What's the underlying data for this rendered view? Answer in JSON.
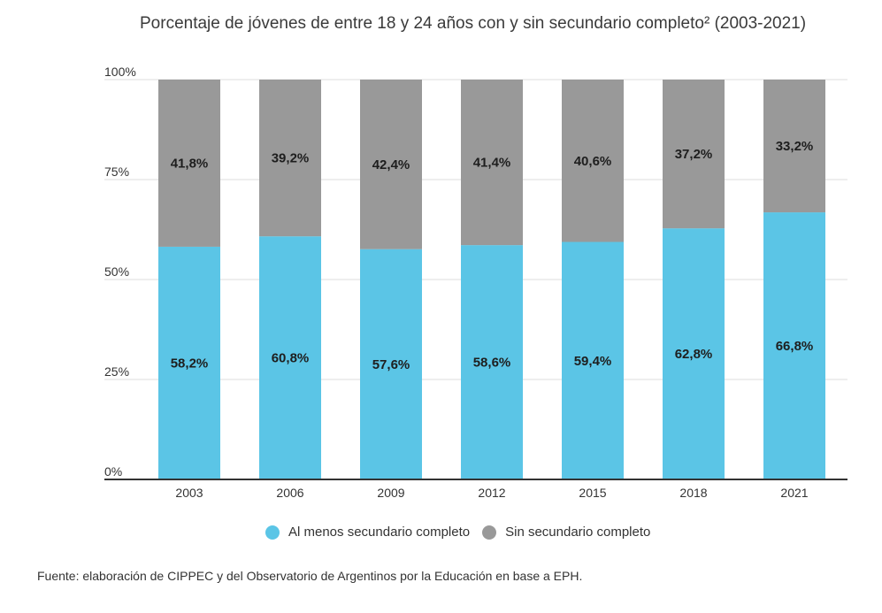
{
  "chart_data": {
    "type": "bar",
    "stacked": true,
    "title": "Porcentaje de jóvenes de entre 18 y 24 años con y sin secundario completo² (2003-2021)",
    "categories": [
      "2003",
      "2006",
      "2009",
      "2012",
      "2015",
      "2018",
      "2021"
    ],
    "series": [
      {
        "name": "Al menos secundario completo",
        "color": "#5bc5e6",
        "values": [
          58.2,
          60.8,
          57.6,
          58.6,
          59.4,
          62.8,
          66.8
        ],
        "labels": [
          "58,2%",
          "60,8%",
          "57,6%",
          "58,6%",
          "59,4%",
          "62,8%",
          "66,8%"
        ]
      },
      {
        "name": "Sin secundario completo",
        "color": "#999999",
        "values": [
          41.8,
          39.2,
          42.4,
          41.4,
          40.6,
          37.2,
          33.2
        ],
        "labels": [
          "41,8%",
          "39,2%",
          "42,4%",
          "41,4%",
          "40,6%",
          "37,2%",
          "33,2%"
        ]
      }
    ],
    "yticks": [
      "0%",
      "25%",
      "50%",
      "75%",
      "100%"
    ],
    "ylim": [
      0,
      100
    ],
    "grid": true,
    "legend_position": "bottom"
  },
  "source": "Fuente: elaboración de CIPPEC y del Observatorio de Argentinos por la Educación en base a EPH."
}
